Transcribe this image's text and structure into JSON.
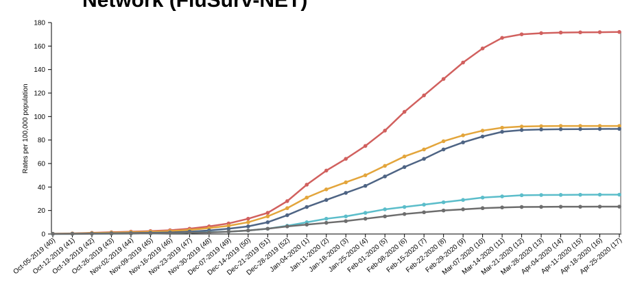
{
  "chart_data": {
    "type": "line",
    "title": "Network (FluSurv-NET)",
    "y_label": "Rates per 100,000 population",
    "categories": [
      "Oct-05-2019 (40)",
      "Oct-12-2019 (41)",
      "Oct-19-2019 (42)",
      "Oct-26-2019 (43)",
      "Nov-02-2019 (44)",
      "Nov-09-2019 (45)",
      "Nov-16-2019 (46)",
      "Nov-23-2019 (47)",
      "Nov-30-2019 (48)",
      "Dec-07-2019 (49)",
      "Dec-14-2019 (50)",
      "Dec-21-2019 (51)",
      "Dec-28-2019 (52)",
      "Jan-04-2020 (1)",
      "Jan-11-2020 (2)",
      "Jan-18-2020 (3)",
      "Jan-25-2020 (4)",
      "Feb-01-2020 (5)",
      "Feb-08-2020 (6)",
      "Feb-15-2020 (7)",
      "Feb-22-2020 (8)",
      "Feb-29-2020 (9)",
      "Mar-07-2020 (10)",
      "Mar-14-2020 (11)",
      "Mar-21-2020 (12)",
      "Mar-28-2020 (13)",
      "Apr-04-2020 (14)",
      "Apr-11-2020 (15)",
      "Apr-18-2020 (16)",
      "Apr-25-2020 (17)"
    ],
    "series": [
      {
        "color": "#d1605e",
        "values": [
          0.2,
          0.5,
          1,
          1.5,
          2,
          2.5,
          3.2,
          4.5,
          6.5,
          9,
          13,
          18,
          28,
          42,
          54,
          64,
          75,
          88,
          104,
          118,
          132,
          146,
          158,
          167,
          170,
          171,
          171.5,
          171.7,
          171.8,
          172
        ]
      },
      {
        "color": "#e3a53b",
        "values": [
          0.2,
          0.4,
          0.8,
          1.2,
          1.6,
          2,
          2.5,
          3.5,
          5,
          7,
          10,
          15,
          22,
          31,
          38,
          44,
          50,
          58,
          66,
          72,
          79,
          84,
          88,
          90.5,
          91.5,
          91.8,
          92,
          92,
          92,
          92
        ]
      },
      {
        "color": "#4e6484",
        "values": [
          0.1,
          0.2,
          0.4,
          0.6,
          0.8,
          1,
          1.3,
          2,
          3,
          4.5,
          6.5,
          10,
          16,
          23,
          29,
          35,
          41,
          49,
          57,
          64,
          72,
          78,
          83,
          87,
          88.5,
          89,
          89.2,
          89.3,
          89.4,
          89.5
        ]
      },
      {
        "color": "#5bbdca",
        "values": [
          0.1,
          0.1,
          0.2,
          0.3,
          0.4,
          0.5,
          0.7,
          1,
          1.5,
          2,
          3,
          4.5,
          7,
          10,
          13,
          15,
          18,
          21,
          23,
          25,
          27,
          29,
          31,
          32,
          33,
          33.2,
          33.3,
          33.4,
          33.5,
          33.5
        ]
      },
      {
        "color": "#6d6d6d",
        "values": [
          0.1,
          0.1,
          0.2,
          0.3,
          0.4,
          0.5,
          0.7,
          1,
          1.3,
          2,
          3,
          4.5,
          6.5,
          8,
          9.5,
          11,
          13,
          15,
          17,
          18.5,
          20,
          21,
          22,
          22.6,
          23,
          23.1,
          23.2,
          23.2,
          23.3,
          23.3
        ]
      }
    ],
    "ylim": [
      0,
      180
    ],
    "yticks": [
      0,
      20,
      40,
      60,
      80,
      100,
      120,
      140,
      160,
      180
    ]
  }
}
